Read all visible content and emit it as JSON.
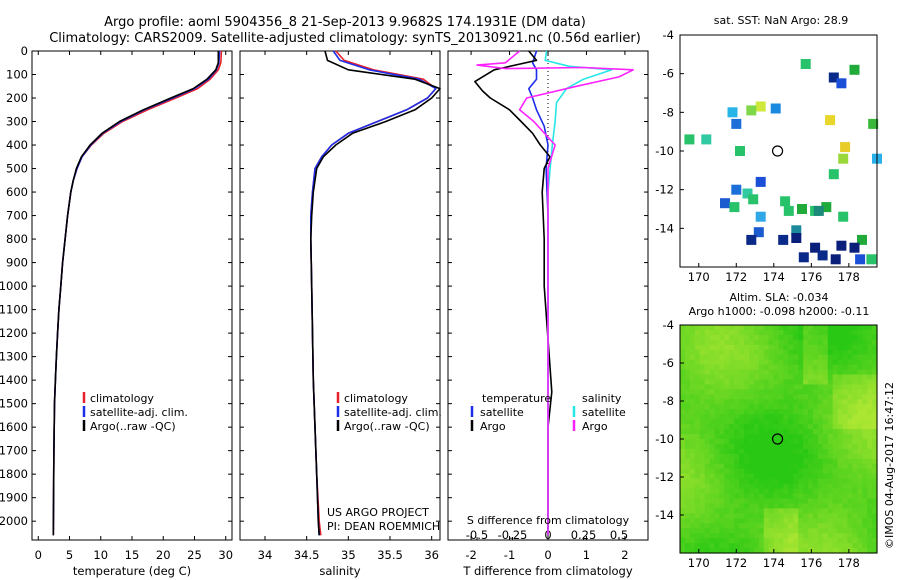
{
  "header": {
    "title_line1": "Argo profile: aoml 5904356_8 21-Sep-2013 9.9682S 174.1931E (DM data)",
    "title_line2": "Climatology: CARS2009. Satellite-adjusted climatology: synTS_20130921.nc (0.56d earlier)"
  },
  "colors": {
    "climatology": "#e8202c",
    "satellite_adj": "#1c2ee8",
    "argo": "#000000",
    "satellite_salinity": "#27e6e6",
    "argo_salinity": "#ff22ff"
  },
  "watermark": "©IMOS 04-Aug-2017 16:47:12",
  "chart_data": [
    {
      "type": "line",
      "name": "temperature-profile",
      "xlabel": "temperature (deg C)",
      "xlim": [
        -1,
        31
      ],
      "xticks": [
        0,
        5,
        10,
        15,
        20,
        25,
        30
      ],
      "ylim": [
        0,
        2080
      ],
      "yticks": [
        0,
        100,
        200,
        300,
        400,
        500,
        600,
        700,
        800,
        900,
        1000,
        1100,
        1200,
        1300,
        1400,
        1500,
        1600,
        1700,
        1800,
        1900,
        2000
      ],
      "y_reversed": true,
      "legend": [
        "climatology",
        "satellite-adj. clim.",
        "Argo(..raw -QC)"
      ],
      "series": [
        {
          "name": "climatology",
          "color": "#e8202c",
          "x": [
            29.3,
            29.2,
            28.8,
            27.5,
            25.5,
            22,
            17.5,
            13.5,
            10.5,
            8.5,
            7,
            6.2,
            5.6,
            5.2,
            4.7,
            4.3,
            3.9,
            3.6,
            3.3,
            3.1,
            2.9,
            2.75,
            2.6,
            2.5,
            2.4
          ],
          "y": [
            0,
            50,
            80,
            120,
            160,
            200,
            250,
            300,
            350,
            400,
            450,
            500,
            550,
            600,
            700,
            800,
            900,
            1000,
            1100,
            1200,
            1300,
            1400,
            1500,
            1700,
            2060
          ]
        },
        {
          "name": "satellite-adj. clim.",
          "color": "#1c2ee8",
          "x": [
            29.0,
            28.9,
            28.5,
            27.2,
            25,
            21.5,
            17,
            13.2,
            10.3,
            8.4,
            7,
            6.2,
            5.6,
            5.2,
            4.7,
            4.3,
            3.9,
            3.6,
            3.3,
            3.1,
            2.9,
            2.75,
            2.6,
            2.5,
            2.4
          ],
          "y": [
            0,
            50,
            80,
            120,
            160,
            200,
            250,
            300,
            350,
            400,
            450,
            500,
            550,
            600,
            700,
            800,
            900,
            1000,
            1100,
            1200,
            1300,
            1400,
            1500,
            1700,
            2060
          ]
        },
        {
          "name": "Argo(..raw -QC)",
          "color": "#000000",
          "x": [
            28.8,
            28.8,
            28.4,
            27.0,
            24.8,
            21.2,
            16.8,
            13.0,
            10.2,
            8.3,
            6.9,
            6.1,
            5.6,
            5.2,
            4.7,
            4.3,
            3.9,
            3.6,
            3.3,
            3.1,
            2.9,
            2.75,
            2.6,
            2.5,
            2.4
          ],
          "y": [
            0,
            50,
            80,
            120,
            160,
            200,
            250,
            300,
            350,
            400,
            450,
            500,
            550,
            600,
            700,
            800,
            900,
            1000,
            1100,
            1200,
            1300,
            1400,
            1500,
            1700,
            2060
          ]
        }
      ]
    },
    {
      "type": "line",
      "name": "salinity-profile",
      "xlabel": "salinity",
      "xlim": [
        33.7,
        36.1
      ],
      "xticks": [
        34,
        34.5,
        35,
        35.5,
        36
      ],
      "xticklabels": [
        "34",
        "34.5",
        "35",
        "35.5",
        "36"
      ],
      "ylim": [
        0,
        2080
      ],
      "y_reversed": true,
      "legend": [
        "climatology",
        "satellite-adj. clim.",
        "Argo(..raw -QC)"
      ],
      "annotation_line1": "US ARGO PROJECT",
      "annotation_line2": "PI: DEAN ROEMMICH",
      "series": [
        {
          "name": "climatology",
          "color": "#e8202c",
          "x": [
            34.85,
            34.95,
            35.3,
            35.9,
            36.05,
            35.95,
            35.7,
            35.35,
            35.0,
            34.8,
            34.68,
            34.6,
            34.57,
            34.55,
            34.55,
            34.56,
            34.57,
            34.58,
            34.6,
            34.62,
            34.65,
            34.67
          ],
          "y": [
            0,
            40,
            80,
            120,
            160,
            200,
            250,
            300,
            350,
            400,
            450,
            500,
            600,
            700,
            800,
            1000,
            1200,
            1400,
            1600,
            1800,
            2000,
            2060
          ]
        },
        {
          "name": "satellite-adj. clim.",
          "color": "#1c2ee8",
          "x": [
            34.82,
            34.9,
            35.25,
            35.85,
            36.05,
            35.95,
            35.7,
            35.35,
            35.0,
            34.8,
            34.68,
            34.6,
            34.57,
            34.55,
            34.55,
            34.56,
            34.57,
            34.58,
            34.6,
            34.62,
            34.64,
            34.65
          ],
          "y": [
            0,
            40,
            80,
            120,
            160,
            200,
            250,
            300,
            350,
            400,
            450,
            500,
            600,
            700,
            800,
            1000,
            1200,
            1400,
            1600,
            1800,
            2000,
            2060
          ]
        },
        {
          "name": "Argo(..raw -QC)",
          "color": "#000000",
          "x": [
            34.72,
            34.75,
            35.0,
            35.8,
            36.1,
            36.0,
            35.8,
            35.45,
            35.05,
            34.85,
            34.7,
            34.62,
            34.58,
            34.56,
            34.55,
            34.56,
            34.57,
            34.58,
            34.6,
            34.62,
            34.64,
            34.65
          ],
          "y": [
            0,
            40,
            80,
            120,
            160,
            200,
            250,
            300,
            350,
            400,
            450,
            500,
            600,
            700,
            800,
            1000,
            1200,
            1400,
            1600,
            1800,
            2000,
            2060
          ]
        }
      ]
    },
    {
      "type": "line",
      "name": "difference-profile",
      "top_xlabel": "S difference from climatology",
      "top_xticks": [
        -0.5,
        -0.25,
        0,
        0.25,
        0.5
      ],
      "top_xticklabels": [
        "-0.5",
        "-0.25",
        "0",
        "0.25",
        "0.5"
      ],
      "xlabel": "T difference from climatology",
      "xlim": [
        -2.6,
        2.6
      ],
      "xticks": [
        -2,
        -1,
        0,
        1,
        2
      ],
      "xticklabels": [
        "-2",
        "-1",
        "0",
        "1",
        "2"
      ],
      "ylim": [
        0,
        2080
      ],
      "y_reversed": true,
      "legend_temperature": {
        "title": "temperature",
        "items": [
          "satellite",
          "Argo"
        ]
      },
      "legend_salinity": {
        "title": "salinity",
        "items": [
          "satellite",
          "Argo"
        ]
      },
      "series": [
        {
          "name": "temperature satellite",
          "color": "#1c2ee8",
          "x": [
            -0.3,
            -0.4,
            -0.3,
            -0.3,
            -0.5,
            -0.4,
            -0.3,
            -0.1,
            0.0,
            -0.05,
            0.0,
            0.0,
            0.0,
            0.0,
            0.0
          ],
          "y": [
            0,
            50,
            80,
            120,
            160,
            200,
            250,
            320,
            400,
            500,
            700,
            1000,
            1400,
            1800,
            2060
          ]
        },
        {
          "name": "temperature Argo",
          "color": "#000000",
          "x": [
            -0.5,
            -0.3,
            -1.4,
            -1.9,
            -1.7,
            -1.5,
            -1.0,
            -0.7,
            -0.4,
            -0.2,
            0.05,
            -0.1,
            -0.15,
            -0.1,
            -0.1,
            0.1,
            0.0,
            0.0,
            0.0
          ],
          "y": [
            0,
            40,
            80,
            130,
            170,
            200,
            250,
            300,
            350,
            400,
            450,
            500,
            600,
            800,
            1000,
            1450,
            1600,
            1800,
            2060
          ]
        },
        {
          "name": "salinity satellite",
          "color": "#27e6e6",
          "x": [
            -0.01,
            -0.02,
            0.15,
            0.45,
            0.25,
            0.13,
            0.06,
            0.05,
            0.03,
            0.0,
            0.0,
            0.0
          ],
          "y": [
            0,
            40,
            65,
            80,
            120,
            160,
            220,
            300,
            400,
            600,
            1000,
            2060
          ]
        },
        {
          "name": "salinity Argo",
          "color": "#ff22ff",
          "x": [
            -0.2,
            -0.3,
            -0.5,
            -0.3,
            0.25,
            0.6,
            0.5,
            0.2,
            -0.15,
            -0.2,
            -0.1,
            0.05,
            0.0,
            0.0,
            0.0
          ],
          "y": [
            0,
            50,
            60,
            75,
            70,
            80,
            110,
            150,
            200,
            250,
            300,
            400,
            500,
            800,
            2060
          ]
        }
      ]
    },
    {
      "type": "scatter",
      "name": "sst-map",
      "title": "sat. SST: NaN Argo: 28.9",
      "xlim": [
        169,
        179.5
      ],
      "xticks": [
        170,
        172,
        174,
        176,
        178
      ],
      "ylim": [
        -16,
        -4
      ],
      "yticks": [
        -14,
        -12,
        -10,
        -8,
        -6,
        -4
      ],
      "profile_marker": [
        174.2,
        -10.0
      ]
    },
    {
      "type": "heatmap",
      "name": "sla-map",
      "title_line1": "Altim. SLA: -0.034",
      "title_line2": "Argo h1000: -0.098 h2000: -0.11",
      "xlim": [
        169,
        179.5
      ],
      "xticks": [
        170,
        172,
        174,
        176,
        178
      ],
      "ylim": [
        -16,
        -4
      ],
      "yticks": [
        -14,
        -12,
        -10,
        -8,
        -6,
        -4
      ],
      "profile_marker": [
        174.2,
        -10.0
      ]
    }
  ]
}
